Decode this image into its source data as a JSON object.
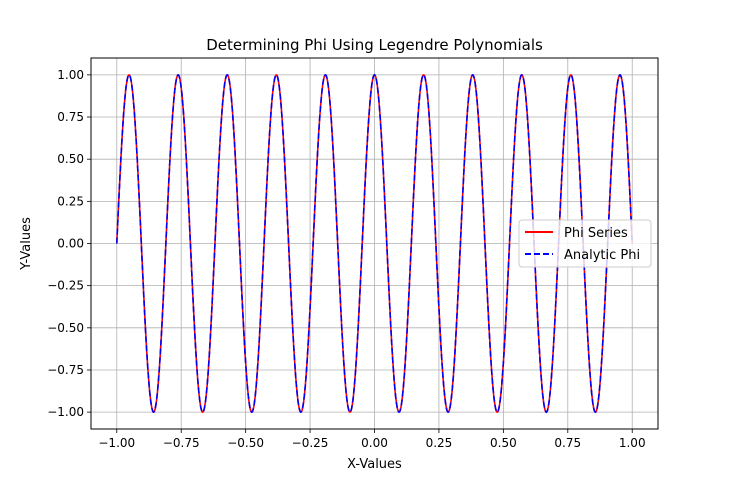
{
  "chart_data": {
    "type": "line",
    "title": "Determining Phi Using Legendre Polynomials",
    "xlabel": "X-Values",
    "ylabel": "Y-Values",
    "xlim": [
      -1.1,
      1.1
    ],
    "ylim": [
      -1.1,
      1.1
    ],
    "xticks": [
      -1.0,
      -0.75,
      -0.5,
      -0.25,
      0.0,
      0.25,
      0.5,
      0.75,
      1.0
    ],
    "xtick_labels": [
      "−1.00",
      "−0.75",
      "−0.50",
      "−0.25",
      "0.00",
      "0.25",
      "0.50",
      "0.75",
      "1.00"
    ],
    "yticks": [
      -1.0,
      -0.75,
      -0.5,
      -0.25,
      0.0,
      0.25,
      0.5,
      0.75,
      1.0
    ],
    "ytick_labels": [
      "−1.00",
      "−0.75",
      "−0.50",
      "−0.25",
      "0.00",
      "0.25",
      "0.50",
      "0.75",
      "1.00"
    ],
    "grid": true,
    "legend_position": "center-right",
    "x_range": [
      -1.0,
      1.0
    ],
    "function": "y = sin(10.5 * pi * (x + 1))",
    "series": [
      {
        "name": "Phi Series",
        "color": "#ff0000",
        "style": "solid"
      },
      {
        "name": "Analytic Phi",
        "color": "#0000ff",
        "style": "dashed"
      }
    ]
  }
}
